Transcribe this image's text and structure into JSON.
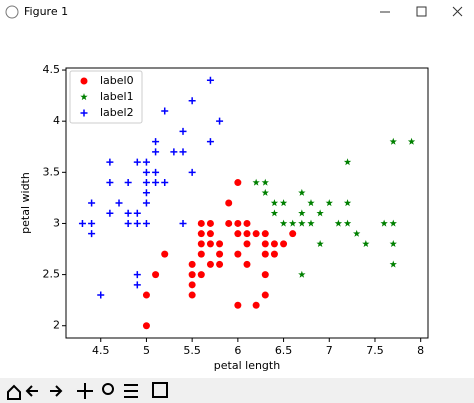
{
  "window": {
    "title": "Figure 1"
  },
  "chart_data": {
    "type": "scatter",
    "xlabel": "petal length",
    "ylabel": "petal width",
    "xlim": [
      4.12,
      8.08
    ],
    "ylim": [
      1.88,
      4.52
    ],
    "xticks": [
      4.5,
      5.0,
      5.5,
      6.0,
      6.5,
      7.0,
      7.5,
      8.0
    ],
    "yticks": [
      2.0,
      2.5,
      3.0,
      3.5,
      4.0,
      4.5
    ],
    "legend": "upper left",
    "series": [
      {
        "name": "label0",
        "color": "#ff0000",
        "marker": "o",
        "x": [
          5.0,
          5.0,
          5.1,
          5.2,
          5.5,
          5.5,
          5.5,
          5.5,
          5.6,
          5.6,
          5.6,
          5.6,
          5.6,
          5.7,
          5.7,
          5.7,
          5.7,
          5.8,
          5.8,
          5.8,
          5.9,
          5.9,
          6.0,
          6.0,
          6.0,
          6.0,
          6.0,
          6.1,
          6.1,
          6.1,
          6.1,
          6.2,
          6.2,
          6.3,
          6.3,
          6.3,
          6.3,
          6.3,
          6.4,
          6.4,
          6.5,
          6.6
        ],
        "values": [
          2.0,
          2.3,
          2.5,
          2.7,
          2.3,
          2.4,
          2.5,
          2.6,
          2.5,
          2.7,
          2.8,
          2.9,
          3.0,
          2.6,
          2.8,
          2.9,
          3.0,
          2.6,
          2.7,
          2.8,
          3.0,
          3.2,
          2.2,
          2.7,
          2.9,
          3.0,
          3.4,
          2.6,
          2.8,
          2.9,
          3.0,
          2.2,
          2.9,
          2.3,
          2.5,
          2.7,
          2.8,
          2.9,
          2.7,
          2.8,
          2.8,
          2.9
        ]
      },
      {
        "name": "label1",
        "color": "#008000",
        "marker": "*",
        "x": [
          6.2,
          6.3,
          6.3,
          6.4,
          6.4,
          6.5,
          6.5,
          6.6,
          6.7,
          6.7,
          6.7,
          6.7,
          6.8,
          6.8,
          6.9,
          6.9,
          7.0,
          7.1,
          7.2,
          7.2,
          7.2,
          7.3,
          7.4,
          7.6,
          7.7,
          7.7,
          7.7,
          7.7,
          7.9
        ],
        "values": [
          3.4,
          3.4,
          3.3,
          3.1,
          3.2,
          3.0,
          3.2,
          3.0,
          3.3,
          3.1,
          3.0,
          2.5,
          3.2,
          3.0,
          3.1,
          2.8,
          3.2,
          3.0,
          3.6,
          3.2,
          3.0,
          2.9,
          2.8,
          3.0,
          3.8,
          3.0,
          2.8,
          2.6,
          3.8
        ]
      },
      {
        "name": "label2",
        "color": "#0000ff",
        "marker": "+",
        "x": [
          4.3,
          4.4,
          4.4,
          4.4,
          4.5,
          4.6,
          4.6,
          4.6,
          4.7,
          4.8,
          4.8,
          4.8,
          4.9,
          4.9,
          4.9,
          4.9,
          4.9,
          5.0,
          5.0,
          5.0,
          5.0,
          5.0,
          5.0,
          5.1,
          5.1,
          5.1,
          5.1,
          5.2,
          5.2,
          5.3,
          5.4,
          5.4,
          5.4,
          5.5,
          5.5,
          5.7,
          5.7,
          5.8
        ],
        "values": [
          3.0,
          3.0,
          2.9,
          3.2,
          2.3,
          3.1,
          3.4,
          3.6,
          3.2,
          3.0,
          3.4,
          3.1,
          3.0,
          3.1,
          3.6,
          2.5,
          2.4,
          3.0,
          3.6,
          3.4,
          3.5,
          3.2,
          3.3,
          3.5,
          3.8,
          3.7,
          3.4,
          3.4,
          4.1,
          3.7,
          3.9,
          3.7,
          3.0,
          4.2,
          3.5,
          4.4,
          3.8,
          4.0
        ]
      }
    ]
  }
}
